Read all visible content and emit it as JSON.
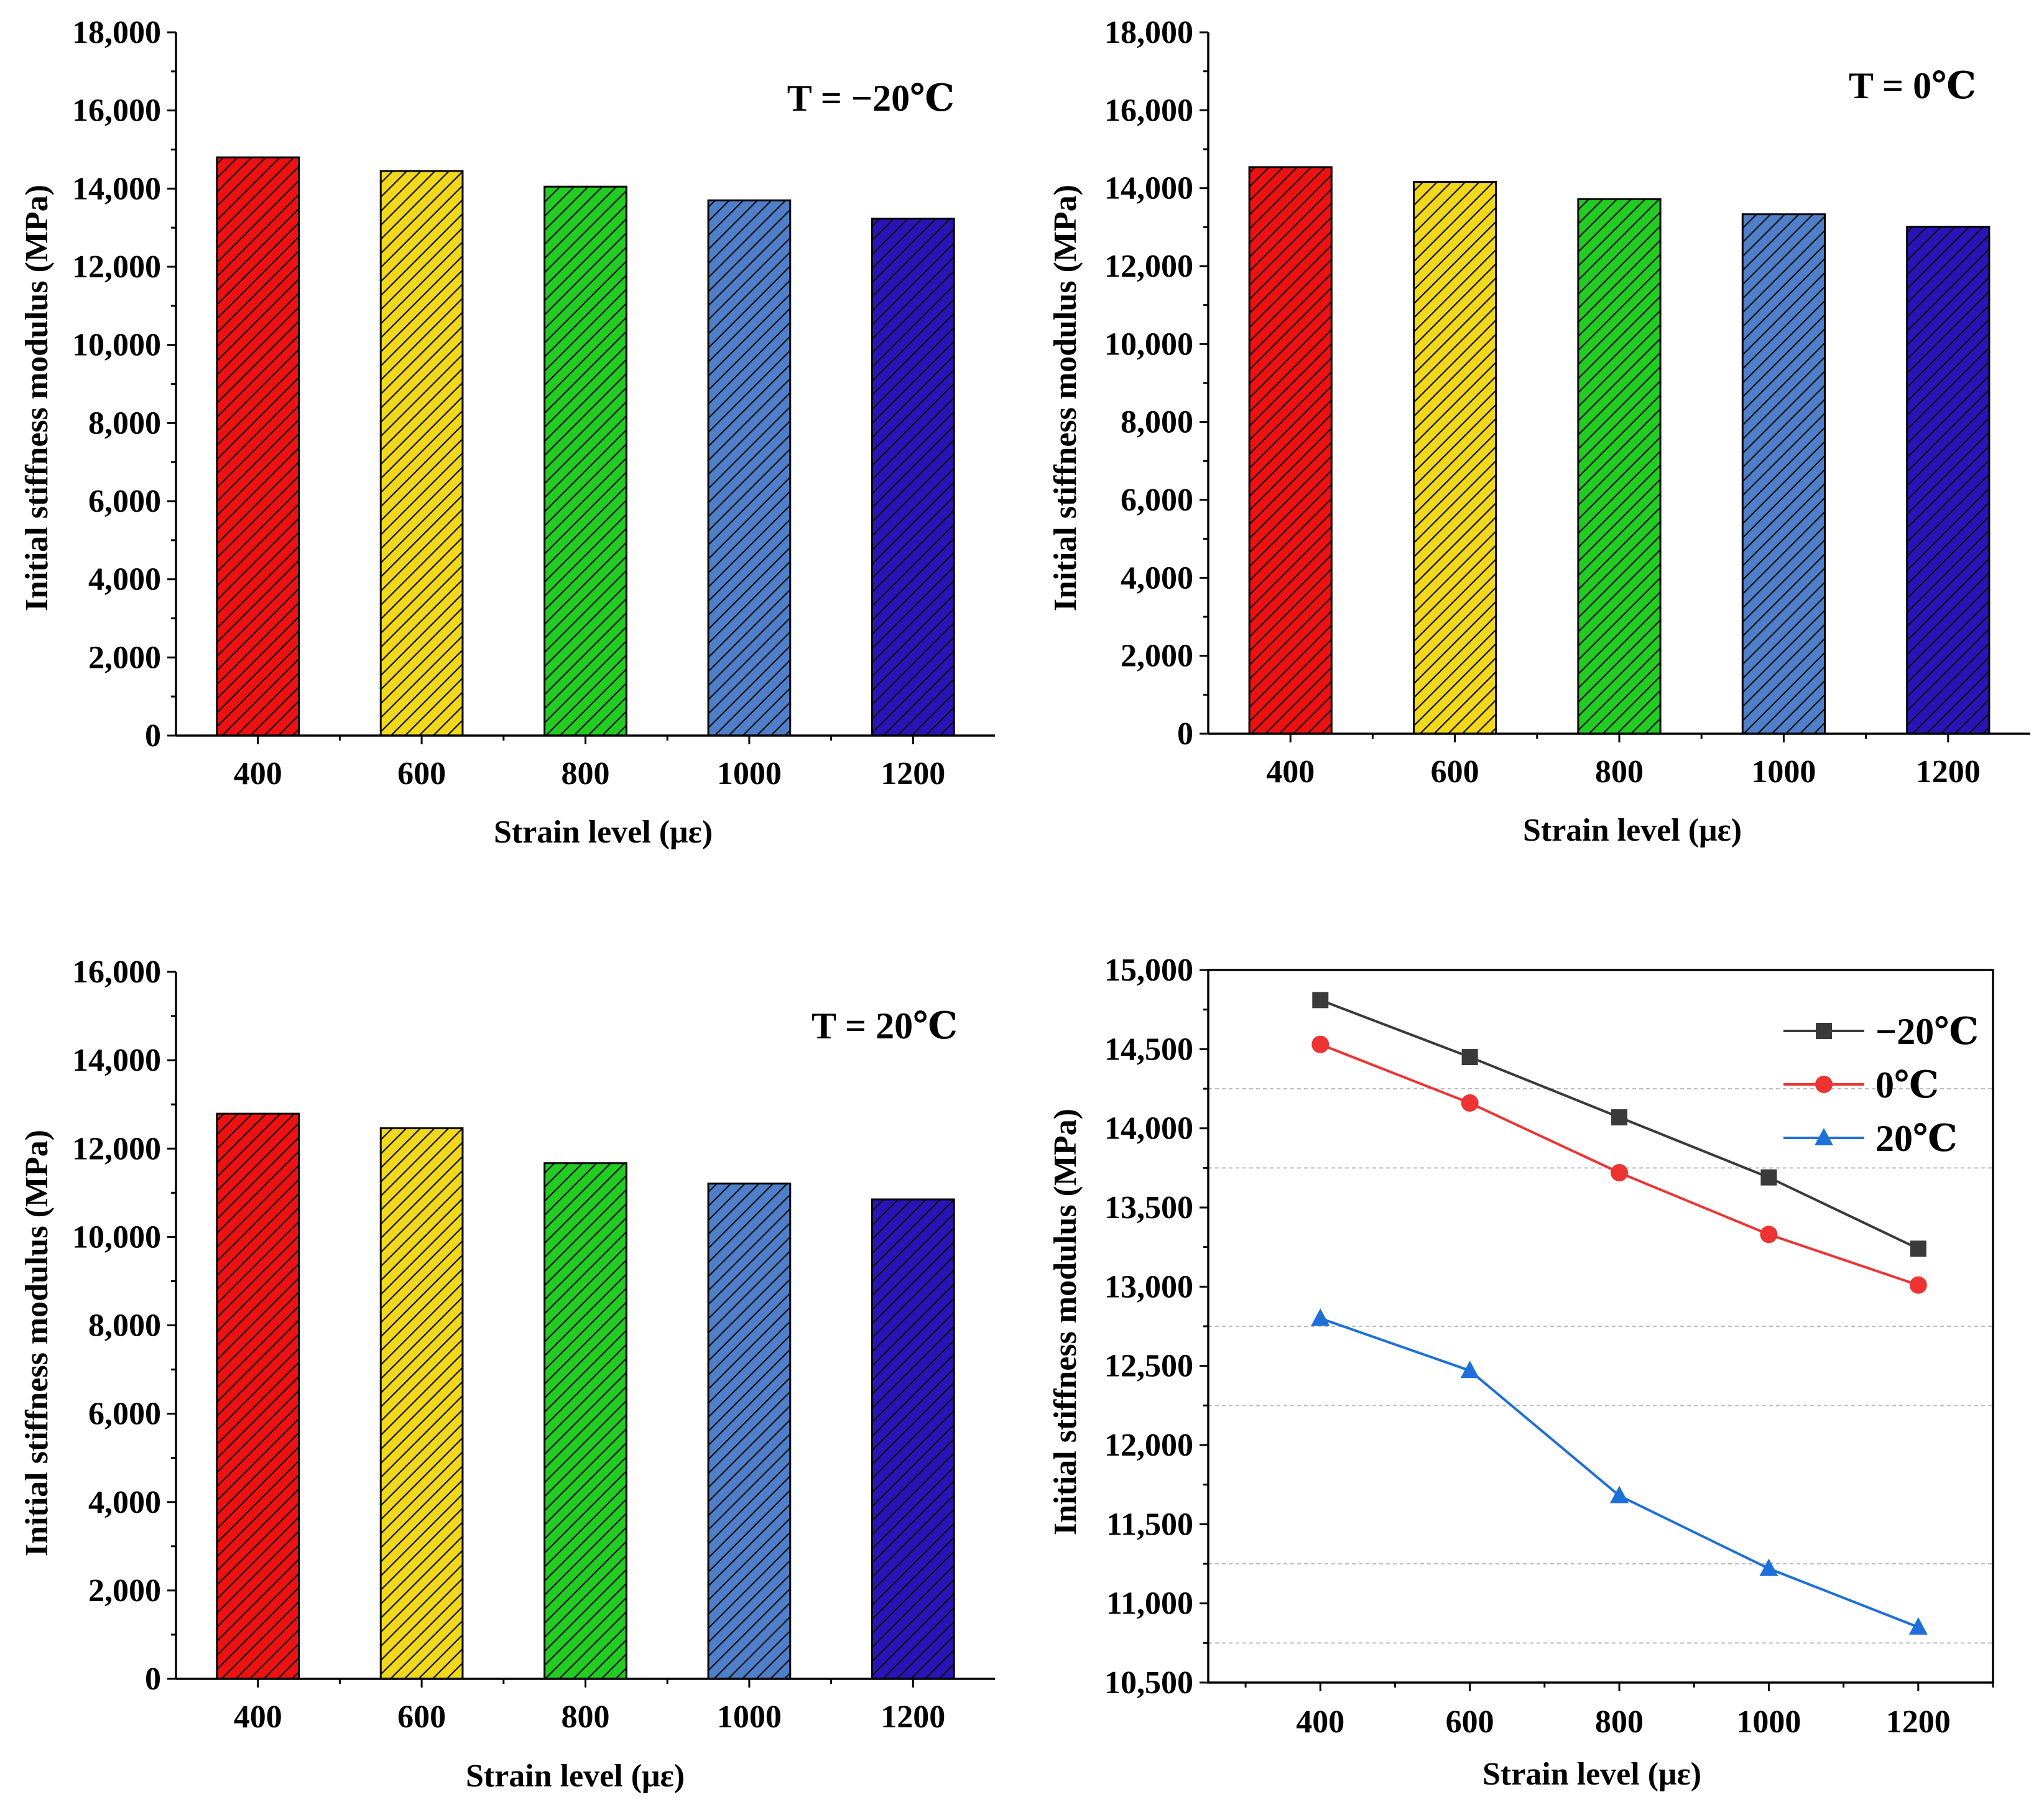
{
  "chart_data": [
    {
      "type": "bar",
      "title": "T = −20℃",
      "categories": [
        "400",
        "600",
        "800",
        "1000",
        "1200"
      ],
      "values": [
        14800,
        14450,
        14050,
        13700,
        13230
      ],
      "xlabel": "Strain level (με)",
      "ylabel": "Initial stiffness modulus  (MPa)",
      "ylim": [
        0,
        18000
      ],
      "yticks": [
        "0",
        "2,000",
        "4,000",
        "6,000",
        "8,000",
        "10,000",
        "12,000",
        "14,000",
        "16,000",
        "18,000"
      ],
      "bar_colors": [
        "#ee1111",
        "#f2d81c",
        "#22cc22",
        "#4f7fc9",
        "#2a14b8"
      ]
    },
    {
      "type": "bar",
      "title": "T = 0℃",
      "categories": [
        "400",
        "600",
        "800",
        "1000",
        "1200"
      ],
      "values": [
        14540,
        14160,
        13720,
        13330,
        13010
      ],
      "xlabel": "Strain level (με)",
      "ylabel": "Initial stiffness modulus  (MPa)",
      "ylim": [
        0,
        18000
      ],
      "yticks": [
        "0",
        "2,000",
        "4,000",
        "6,000",
        "8,000",
        "10,000",
        "12,000",
        "14,000",
        "16,000",
        "18,000"
      ],
      "bar_colors": [
        "#ee1111",
        "#f2d81c",
        "#22cc22",
        "#4f7fc9",
        "#2a14b8"
      ]
    },
    {
      "type": "bar",
      "title": "T = 20℃",
      "categories": [
        "400",
        "600",
        "800",
        "1000",
        "1200"
      ],
      "values": [
        12790,
        12460,
        11670,
        11210,
        10850
      ],
      "xlabel": "Strain level (με)",
      "ylabel": "Initial stiffness modulus  (MPa)",
      "ylim": [
        0,
        16000
      ],
      "yticks": [
        "0",
        "2,000",
        "4,000",
        "6,000",
        "8,000",
        "10,000",
        "12,000",
        "14,000",
        "16,000"
      ],
      "bar_colors": [
        "#ee1111",
        "#f2d81c",
        "#22cc22",
        "#4f7fc9",
        "#2a14b8"
      ]
    },
    {
      "type": "line",
      "title": "",
      "x": [
        400,
        600,
        800,
        1000,
        1200
      ],
      "xticks": [
        "400",
        "600",
        "800",
        "1000",
        "1200"
      ],
      "xlim": [
        250,
        1300
      ],
      "series": [
        {
          "name": "−20℃",
          "values": [
            14810,
            14450,
            14070,
            13690,
            13240
          ],
          "color": "#3a3a3a",
          "marker": "square"
        },
        {
          "name": "0℃",
          "values": [
            14530,
            14160,
            13720,
            13330,
            13010
          ],
          "color": "#ee3333",
          "marker": "circle"
        },
        {
          "name": "20℃",
          "values": [
            12800,
            12470,
            11680,
            11220,
            10850
          ],
          "color": "#1e6fd9",
          "marker": "triangle"
        }
      ],
      "xlabel": "Strain level (με)",
      "ylabel": "Initial stiffness modulus  (MPa)",
      "ylim": [
        10500,
        15000
      ],
      "yticks": [
        "10,500",
        "11,000",
        "11,500",
        "12,000",
        "12,500",
        "13,000",
        "13,500",
        "14,000",
        "14,500",
        "15,000"
      ],
      "gridlines": [
        10750,
        11250,
        12250,
        12750,
        13750,
        14250
      ]
    }
  ]
}
